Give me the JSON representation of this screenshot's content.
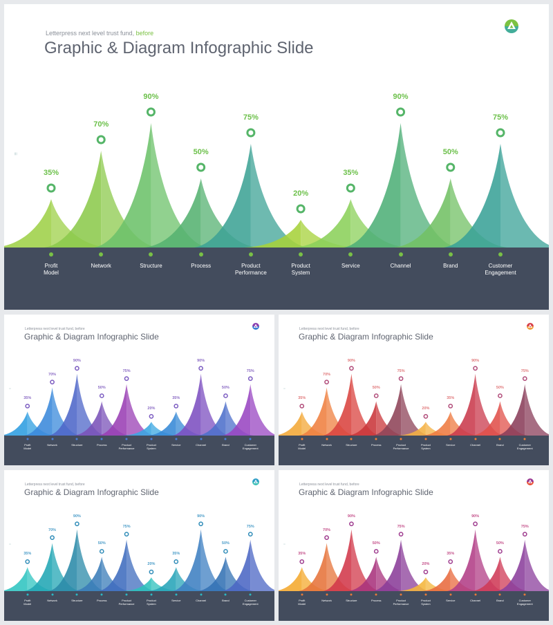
{
  "slide": {
    "subtitle_main": "Letterpress next level trust fund,",
    "subtitle_accent": "before",
    "subtitle_small": "Letterpress next level trust fund, before",
    "title": "Graphic & Diagram Infographic Slide"
  },
  "chart_data": {
    "type": "area",
    "title": "Graphic & Diagram Infographic Slide",
    "categories": [
      "Profit Model",
      "Network",
      "Structure",
      "Process",
      "Product Performance",
      "Product System",
      "Service",
      "Channel",
      "Brand",
      "Customer Engagement"
    ],
    "category_lines": [
      [
        "Profit",
        "Model"
      ],
      [
        "Network"
      ],
      [
        "Structure"
      ],
      [
        "Process"
      ],
      [
        "Product",
        "Performance"
      ],
      [
        "Product",
        "System"
      ],
      [
        "Service"
      ],
      [
        "Channel"
      ],
      [
        "Brand"
      ],
      [
        "Customer",
        "Engagement"
      ]
    ],
    "values": [
      35,
      70,
      90,
      50,
      75,
      20,
      35,
      90,
      50,
      75
    ],
    "labels": [
      "35%",
      "70%",
      "90%",
      "50%",
      "75%",
      "20%",
      "35%",
      "90%",
      "50%",
      "75%"
    ],
    "unit": "%"
  },
  "variants": [
    {
      "name": "green",
      "colors": [
        "#9ed048",
        "#8cca4c",
        "#6cc16a",
        "#55b271",
        "#3ea395",
        "#a6d23a",
        "#8bd05a",
        "#4faf78",
        "#72c064",
        "#3aa297"
      ],
      "label_color": "#6cc04a",
      "ring_color": "#55b568",
      "dot_color": "#79c046",
      "logo_top": "#7cc242",
      "logo_bottom": "#43ad9a"
    },
    {
      "name": "blue-purple",
      "colors": [
        "#2d9de0",
        "#3a89db",
        "#4d66c8",
        "#7a52b8",
        "#9a3fb4",
        "#3aa7e2",
        "#3589d6",
        "#7c4fc0",
        "#4d6fcb",
        "#9845c2"
      ],
      "label_color": "#8b6bc4",
      "ring_color": "#7a5ac0",
      "dot_color": "#4a7ed8",
      "logo_top": "#8a3fb0",
      "logo_bottom": "#3c7fd4"
    },
    {
      "name": "orange-red",
      "colors": [
        "#f3a735",
        "#ef8040",
        "#d9433f",
        "#c9363a",
        "#8e4358",
        "#f4b042",
        "#ee7a40",
        "#c93a4c",
        "#e0504a",
        "#8a3e5a"
      ],
      "label_color": "#e0787a",
      "ring_color": "#b04a78",
      "dot_color": "#f08038",
      "logo_top": "#d8424a",
      "logo_bottom": "#f0a040"
    },
    {
      "name": "teal-blue",
      "colors": [
        "#2fc4c0",
        "#21a6b4",
        "#2a8aa8",
        "#3a7cb8",
        "#3f6cbe",
        "#2cc0bc",
        "#27a4b8",
        "#3d7fc2",
        "#3372b4",
        "#4b66c4"
      ],
      "label_color": "#4a9cc8",
      "ring_color": "#2f8cb8",
      "dot_color": "#2bb8c4",
      "logo_top": "#2f9ec6",
      "logo_bottom": "#3fc0b8"
    },
    {
      "name": "red-purple",
      "colors": [
        "#f4a92e",
        "#e6733a",
        "#d2384a",
        "#a8327c",
        "#8a3c98",
        "#f4b53a",
        "#e86a3e",
        "#b23e86",
        "#cf3a56",
        "#8b3f9c"
      ],
      "label_color": "#c4508a",
      "ring_color": "#9e3b8e",
      "dot_color": "#e77a3a",
      "logo_top": "#9a3a92",
      "logo_bottom": "#e8503a"
    }
  ]
}
